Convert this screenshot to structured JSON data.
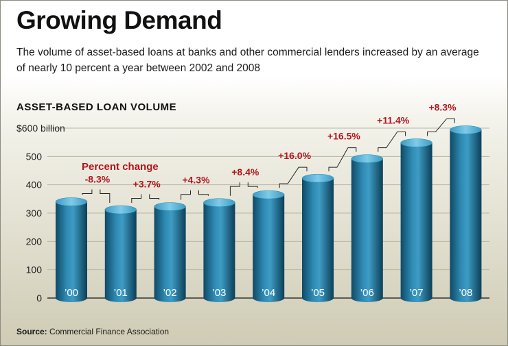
{
  "header": {
    "title": "Growing Demand",
    "subtitle": "The volume of asset-based loans at banks and other commercial lenders increased by an average of nearly 10 percent a year between 2002 and 2008"
  },
  "colors": {
    "bar": "#1d6a8c",
    "bar_light": "#4ea9cf",
    "bar_top": "#5ab6dc",
    "change_text": "#b3151c"
  },
  "chart_data": {
    "type": "bar",
    "title": "ASSET-BASED LOAN VOLUME",
    "ylabel": "",
    "xlabel": "",
    "ylim": [
      0,
      600
    ],
    "y_ticks": [
      0,
      100,
      200,
      300,
      400,
      500,
      600
    ],
    "y_tick_labels": [
      "0",
      "100",
      "200",
      "300",
      "400",
      "500",
      "$600 billion"
    ],
    "categories": [
      "’00",
      "’01",
      "’02",
      "’03",
      "’04",
      "’05",
      "’06",
      "’07",
      "’08"
    ],
    "values": [
      340,
      312,
      323,
      337,
      365,
      423,
      492,
      548,
      594
    ],
    "changes": [
      "-8.3%",
      "+3.7%",
      "+4.3%",
      "+8.4%",
      "+16.0%",
      "+16.5%",
      "+11.4%",
      "+8.3%"
    ],
    "annotation": "Percent change"
  },
  "footer": {
    "source_label": "Source:",
    "source_text": "Commercial Finance Association"
  }
}
